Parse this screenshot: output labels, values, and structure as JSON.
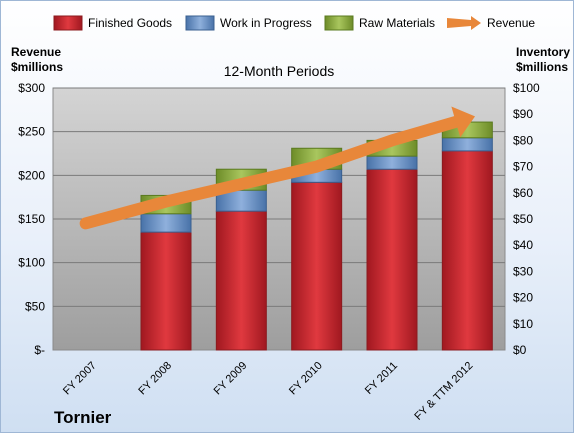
{
  "chart_data": {
    "type": "bar",
    "stacked": true,
    "title": "12-Month Periods",
    "company": "Tornier",
    "categories": [
      "FY 2007",
      "FY 2008",
      "FY 2009",
      "FY 2010",
      "FY 2011",
      "FY & TTM 2012"
    ],
    "left_axis": {
      "label_line1": "Revenue",
      "label_line2": "$millions",
      "ylim": [
        0,
        300
      ],
      "ticks": [
        "$-",
        "$50",
        "$100",
        "$150",
        "$200",
        "$250",
        "$300"
      ]
    },
    "right_axis": {
      "label_line1": "Inventory",
      "label_line2": "$millions",
      "ylim": [
        0,
        100
      ],
      "ticks": [
        "$0",
        "$10",
        "$20",
        "$30",
        "$40",
        "$50",
        "$60",
        "$70",
        "$80",
        "$90",
        "$100"
      ]
    },
    "series": [
      {
        "name": "Finished Goods",
        "axis": "right",
        "color": "#c0272d",
        "values": [
          null,
          45,
          53,
          64,
          69,
          76
        ]
      },
      {
        "name": "Work in Progress",
        "axis": "right",
        "color": "#4f81bd",
        "values": [
          null,
          7,
          8,
          5,
          5,
          5
        ]
      },
      {
        "name": "Raw Materials",
        "axis": "right",
        "color": "#8aad3c",
        "values": [
          null,
          7,
          8,
          8,
          6,
          6
        ]
      },
      {
        "name": "Revenue",
        "axis": "left",
        "color": "#e8873a",
        "type": "line",
        "values": [
          145,
          170,
          190,
          210,
          240,
          265
        ]
      }
    ],
    "grid": true,
    "legend": "top"
  }
}
